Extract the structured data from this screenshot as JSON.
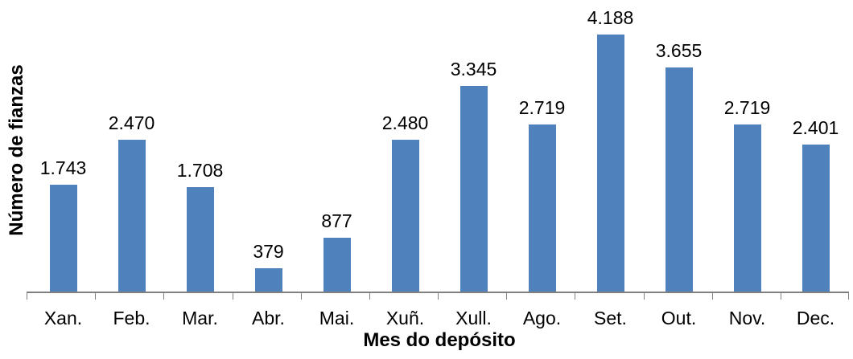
{
  "chart_data": {
    "type": "bar",
    "categories": [
      "Xan.",
      "Feb.",
      "Mar.",
      "Abr.",
      "Mai.",
      "Xuñ.",
      "Xull.",
      "Ago.",
      "Set.",
      "Out.",
      "Nov.",
      "Dec."
    ],
    "values": [
      1743,
      2470,
      1708,
      379,
      877,
      2480,
      3345,
      2719,
      4188,
      3655,
      2719,
      2401
    ],
    "data_labels": [
      "1.743",
      "2.470",
      "1.708",
      "379",
      "877",
      "2.480",
      "3.345",
      "2.719",
      "4.188",
      "3.655",
      "2.719",
      "2.401"
    ],
    "xlabel": "Mes do depósito",
    "ylabel": "Número de fianzas",
    "grid": false,
    "legend": null,
    "colors": {
      "bar": "#4F81BD",
      "axis": "#808080",
      "text": "#000000",
      "background": "#FFFFFF"
    }
  }
}
